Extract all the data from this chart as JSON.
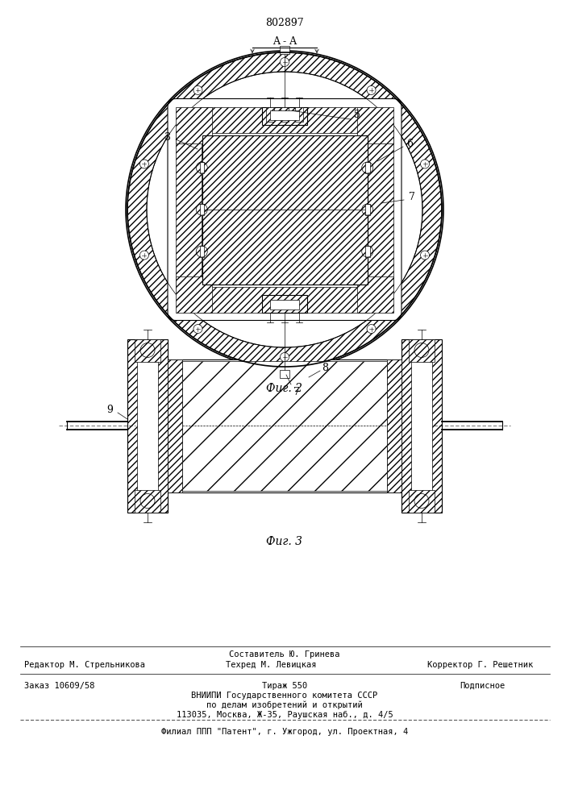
{
  "patent_number": "802897",
  "aa_label": "A - A",
  "fig2_caption": "Фиг. 2",
  "fig3_caption": "Фиг. 3",
  "editor_line": "Редактор М. Стрельникова",
  "compiler_line": "Составитель Ю. Гринева",
  "techred_line": "Техред М. Левицкая",
  "corrector_line": "Корректор Г. Решетник",
  "order_line": "Заказ 10609/58",
  "tirazh_line": "Тираж 550",
  "podpisnoe_line": "Подписное",
  "vniipи_line": "ВНИИПИ Государственного комитета СССР",
  "po_delam_line": "по делам изобретений и открытий",
  "address_line": "113035, Москва, Ж-35, Раушская наб., д. 4/5",
  "filial_line": "Филиал ППП \"Патент\", г. Ужгород, ул. Проектная, 4",
  "bg_color": "#ffffff",
  "line_color": "#000000"
}
